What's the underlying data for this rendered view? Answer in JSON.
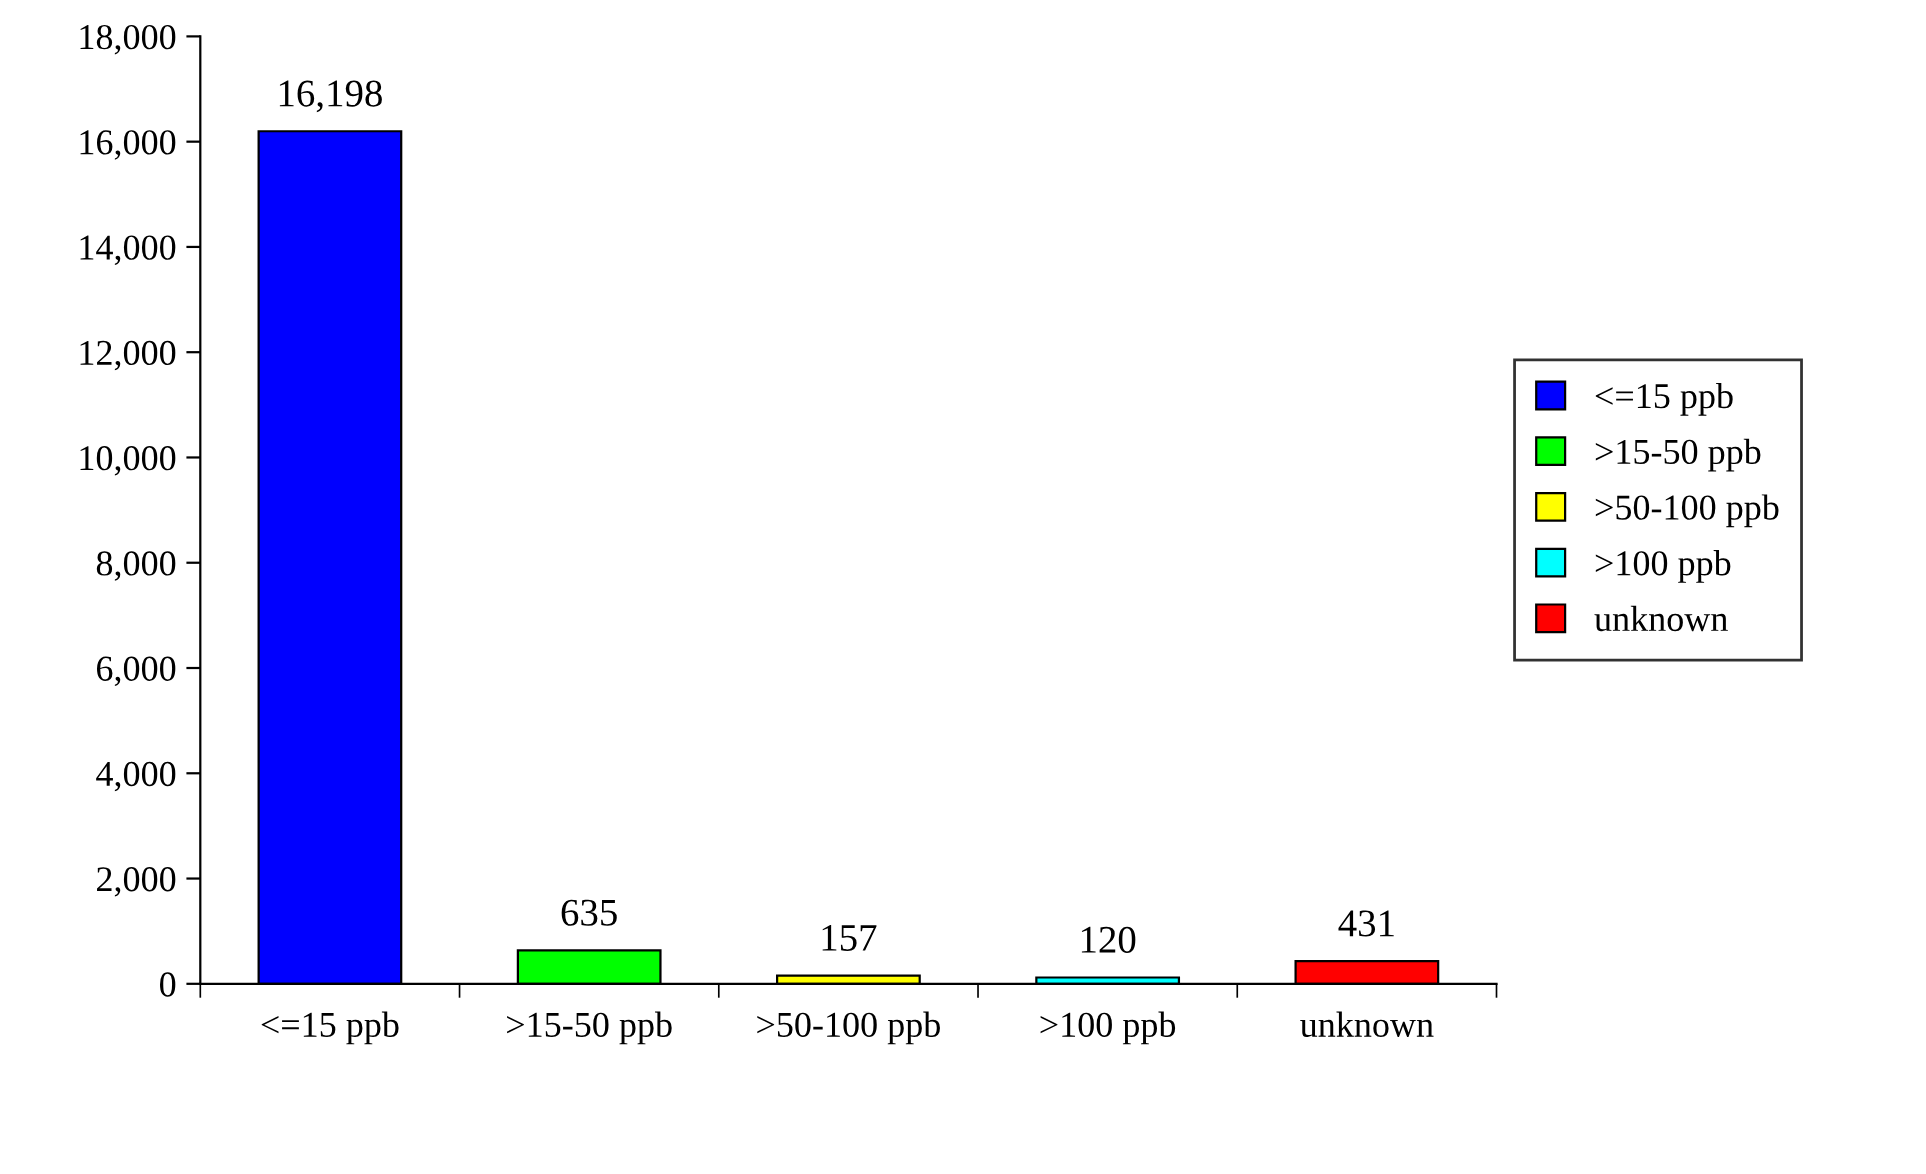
{
  "chart_data": {
    "type": "bar",
    "categories": [
      "<=15 ppb",
      ">15-50 ppb",
      ">50-100 ppb",
      ">100 ppb",
      "unknown"
    ],
    "stacked": true,
    "series": [
      {
        "name": "<=15 ppb",
        "color": "#0000ff",
        "values": [
          16198,
          null,
          null,
          null,
          null
        ],
        "value_labels": [
          "16,198",
          null,
          null,
          null,
          null
        ]
      },
      {
        "name": ">15-50 ppb",
        "color": "#00ff00",
        "values": [
          null,
          635,
          null,
          null,
          null
        ],
        "value_labels": [
          null,
          "635",
          null,
          null,
          null
        ]
      },
      {
        "name": ">50-100 ppb",
        "color": "#ffff00",
        "values": [
          null,
          null,
          157,
          null,
          null
        ],
        "value_labels": [
          null,
          null,
          "157",
          null,
          null
        ]
      },
      {
        "name": ">100 ppb",
        "color": "#00ffff",
        "values": [
          null,
          null,
          null,
          120,
          null
        ],
        "value_labels": [
          null,
          null,
          null,
          "120",
          null
        ]
      },
      {
        "name": "unknown",
        "color": "#ff0000",
        "values": [
          null,
          null,
          null,
          null,
          431
        ],
        "value_labels": [
          null,
          null,
          null,
          null,
          "431"
        ]
      }
    ],
    "ylim": [
      0,
      18000
    ],
    "yticks": [
      {
        "value": 0,
        "label": "0"
      },
      {
        "value": 2000,
        "label": "2,000"
      },
      {
        "value": 4000,
        "label": "4,000"
      },
      {
        "value": 6000,
        "label": "6,000"
      },
      {
        "value": 8000,
        "label": "8,000"
      },
      {
        "value": 10000,
        "label": "10,000"
      },
      {
        "value": 12000,
        "label": "12,000"
      },
      {
        "value": 14000,
        "label": "14,000"
      },
      {
        "value": 16000,
        "label": "16,000"
      },
      {
        "value": 18000,
        "label": "18,000"
      }
    ],
    "legend": "right"
  }
}
